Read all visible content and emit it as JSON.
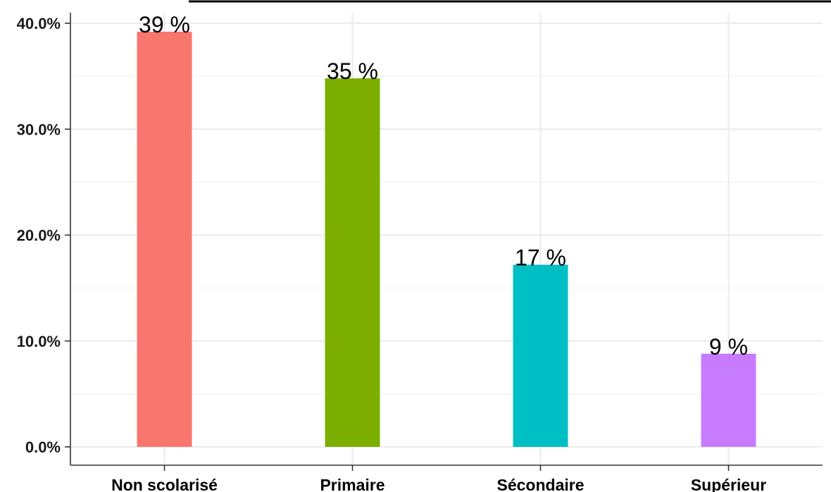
{
  "chart_data": {
    "type": "bar",
    "categories": [
      "Non scolarisé",
      "Primaire",
      "Sécondaire",
      "Supérieur"
    ],
    "values": [
      39.2,
      34.8,
      17.2,
      8.8
    ],
    "data_labels": [
      "39 %",
      "35 %",
      "17 %",
      "9 %"
    ],
    "colors": [
      "#f8766d",
      "#7cae00",
      "#00bfc4",
      "#c77cff"
    ],
    "ylim": [
      0,
      40
    ],
    "yticks": [
      0,
      10,
      20,
      30,
      40
    ],
    "ytick_labels": [
      "0.0%",
      "10.0%",
      "20.0%",
      "30.0%",
      "40.0%"
    ],
    "grid": true,
    "title": "",
    "xlabel": "",
    "ylabel": ""
  }
}
